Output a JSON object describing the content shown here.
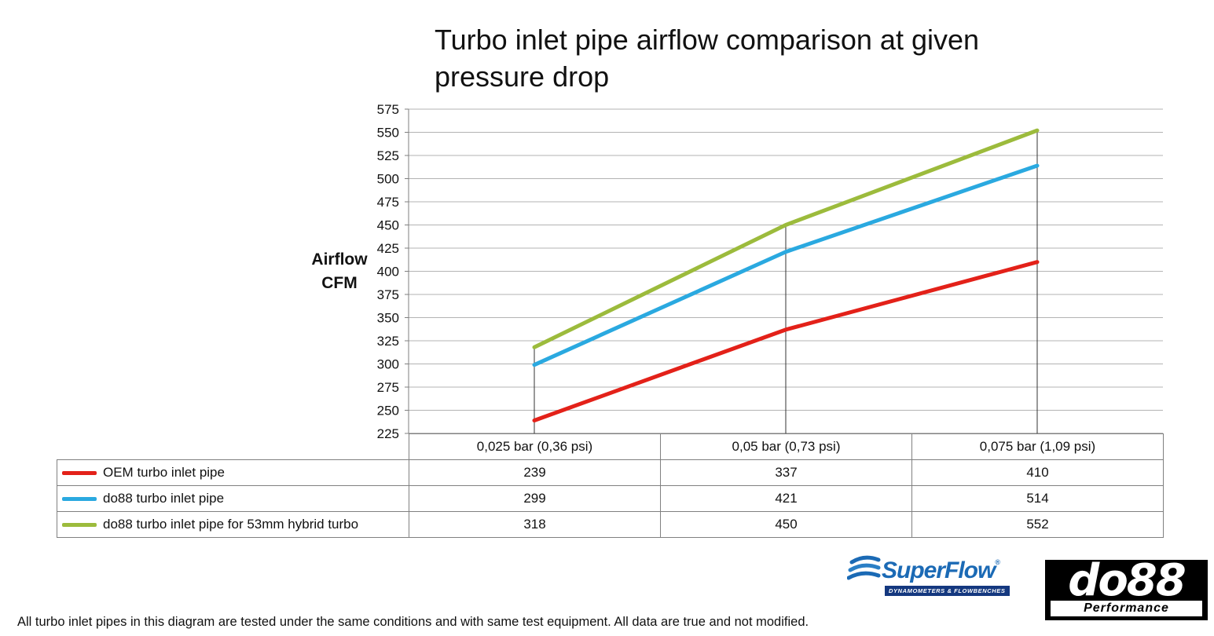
{
  "chart_data": {
    "type": "line",
    "title": "Turbo inlet pipe airflow comparison at given pressure drop",
    "ylabel_line1": "Airflow",
    "ylabel_line2": "CFM",
    "categories": [
      "0,025 bar (0,36 psi)",
      "0,05 bar (0,73 psi)",
      "0,075 bar (1,09 psi)"
    ],
    "series": [
      {
        "name": "OEM turbo inlet pipe",
        "color": "#e32119",
        "values": [
          239,
          337,
          410
        ]
      },
      {
        "name": "do88 turbo inlet pipe",
        "color": "#2aa9e0",
        "values": [
          299,
          421,
          514
        ]
      },
      {
        "name": "do88 turbo inlet pipe for 53mm hybrid turbo",
        "color": "#9cbb3c",
        "values": [
          318,
          450,
          552
        ]
      }
    ],
    "ylim": [
      225,
      575
    ],
    "ytick_step": 25,
    "grid": true,
    "legend_position": "table-below",
    "gridline_color": "#b3b3b3",
    "axis_color": "#7f7f7f",
    "droplinecolor": "#333333"
  },
  "footer": {
    "disclaimer": "All turbo inlet pipes in this diagram are tested under the same conditions and with same test equipment. All data are true and not modified."
  },
  "logos": {
    "superflow": {
      "name": "SuperFlow",
      "registered": "®",
      "tagline": "DYNAMOMETERS & FLOWBENCHES"
    },
    "do88": {
      "name": "do88",
      "tagline": "Performance"
    }
  }
}
